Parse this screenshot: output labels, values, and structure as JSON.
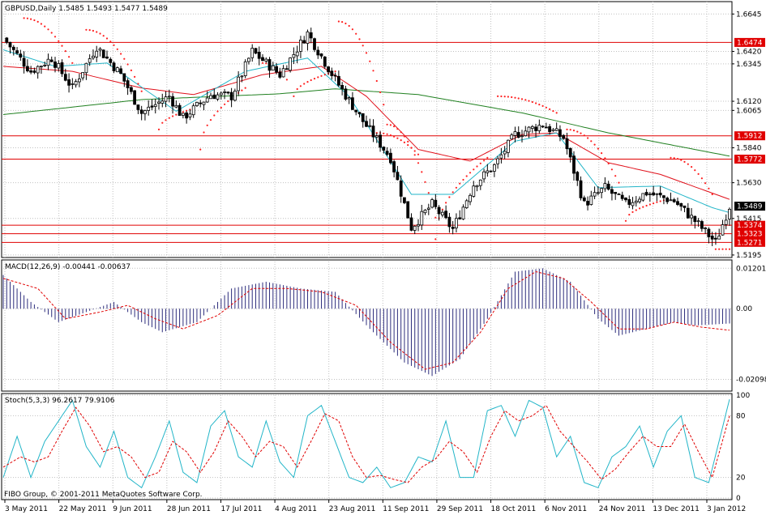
{
  "colors": {
    "background": "#ffffff",
    "frame": "#000000",
    "grid": "#c0c0c0",
    "candle": "#000000",
    "sma_slow": "#208020",
    "ema_mid": "#e0101a",
    "ema_fast": "#22b5c8",
    "sar": "#ff2020",
    "hline": "#e00000",
    "label_red_bg": "#e00000",
    "label_black_bg": "#000000",
    "macd_hist": "#2c2c7c",
    "macd_signal": "#e00000",
    "stoch_main": "#22b5c8",
    "stoch_signal": "#e00000"
  },
  "header": {
    "symbol_line": "GBPUSD,Daily  1.5485 1.5493 1.5477 1.5489",
    "macd_line": "MACD(12,26,9) -0.00441 -0.00637",
    "stoch_line": "Stoch(5,3,3) 96.2617 79.9106",
    "copyright": "FIBO Group, © 2001-2011 MetaQuotes Software Corp."
  },
  "chart_data": [
    {
      "type": "candlestick",
      "title": "GBPUSD,Daily  1.5485 1.5493 1.5477 1.5489",
      "ylim": [
        1.518,
        1.67
      ],
      "y_ticks": [
        "1.6645",
        "1.6420",
        "1.6345",
        "1.6120",
        "1.6065",
        "1.5840",
        "1.5630",
        "1.5415",
        "1.5195"
      ],
      "y_tick_values": [
        1.6645,
        1.642,
        1.6345,
        1.612,
        1.6065,
        1.584,
        1.563,
        1.5415,
        1.5195
      ],
      "x_ticks": [
        "3 May 2011",
        "22 May 2011",
        "9 Jun 2011",
        "28 Jun 2011",
        "17 Jul 2011",
        "4 Aug 2011",
        "23 Aug 2011",
        "11 Sep 2011",
        "29 Sep 2011",
        "18 Oct 2011",
        "6 Nov 2011",
        "24 Nov 2011",
        "13 Dec 2011",
        "3 Jan 2012"
      ],
      "bars_count": 180,
      "close_path": [
        [
          0,
          1.65
        ],
        [
          8,
          1.63
        ],
        [
          14,
          1.638
        ],
        [
          20,
          1.62
        ],
        [
          27,
          1.645
        ],
        [
          34,
          1.628
        ],
        [
          40,
          1.605
        ],
        [
          48,
          1.615
        ],
        [
          52,
          1.602
        ],
        [
          60,
          1.616
        ],
        [
          66,
          1.615
        ],
        [
          72,
          1.642
        ],
        [
          80,
          1.628
        ],
        [
          88,
          1.653
        ],
        [
          96,
          1.625
        ],
        [
          104,
          1.6
        ],
        [
          112,
          1.578
        ],
        [
          118,
          1.536
        ],
        [
          124,
          1.55
        ],
        [
          130,
          1.535
        ],
        [
          136,
          1.562
        ],
        [
          142,
          1.573
        ],
        [
          148,
          1.592
        ],
        [
          156,
          1.598
        ],
        [
          162,
          1.59
        ],
        [
          168,
          1.55
        ],
        [
          174,
          1.56
        ],
        [
          180,
          1.55
        ],
        [
          186,
          1.557
        ],
        [
          194,
          1.552
        ],
        [
          200,
          1.54
        ],
        [
          206,
          1.527
        ],
        [
          210,
          1.5489
        ]
      ],
      "sma_slow": [
        [
          0,
          1.604
        ],
        [
          40,
          1.613
        ],
        [
          80,
          1.6165
        ],
        [
          96,
          1.6195
        ],
        [
          120,
          1.616
        ],
        [
          150,
          1.605
        ],
        [
          175,
          1.593
        ],
        [
          210,
          1.579
        ]
      ],
      "ema_mid": [
        [
          0,
          1.633
        ],
        [
          20,
          1.63
        ],
        [
          40,
          1.62
        ],
        [
          55,
          1.616
        ],
        [
          75,
          1.628
        ],
        [
          92,
          1.633
        ],
        [
          105,
          1.615
        ],
        [
          120,
          1.583
        ],
        [
          135,
          1.576
        ],
        [
          150,
          1.592
        ],
        [
          160,
          1.593
        ],
        [
          175,
          1.575
        ],
        [
          190,
          1.568
        ],
        [
          210,
          1.553
        ]
      ],
      "ema_fast": [
        [
          0,
          1.643
        ],
        [
          15,
          1.633
        ],
        [
          30,
          1.635
        ],
        [
          50,
          1.606
        ],
        [
          70,
          1.63
        ],
        [
          88,
          1.638
        ],
        [
          100,
          1.615
        ],
        [
          118,
          1.556
        ],
        [
          130,
          1.556
        ],
        [
          148,
          1.588
        ],
        [
          160,
          1.593
        ],
        [
          172,
          1.56
        ],
        [
          190,
          1.561
        ],
        [
          205,
          1.548
        ],
        [
          210,
          1.545
        ]
      ],
      "sar_segments": [
        {
          "from": 6,
          "to": 20,
          "start": 1.662,
          "end": 1.635
        },
        {
          "from": 24,
          "to": 40,
          "start": 1.655,
          "end": 1.618
        },
        {
          "from": 45,
          "to": 54,
          "start": 1.595,
          "end": 1.607
        },
        {
          "from": 57,
          "to": 70,
          "start": 1.583,
          "end": 1.62
        },
        {
          "from": 75,
          "to": 82,
          "start": 1.635,
          "end": 1.625
        },
        {
          "from": 84,
          "to": 96,
          "start": 1.615,
          "end": 1.63
        },
        {
          "from": 97,
          "to": 110,
          "start": 1.66,
          "end": 1.61
        },
        {
          "from": 108,
          "to": 120,
          "start": 1.593,
          "end": 1.58
        },
        {
          "from": 111,
          "to": 125,
          "start": 1.598,
          "end": 1.542
        },
        {
          "from": 125,
          "to": 140,
          "start": 1.529,
          "end": 1.578
        },
        {
          "from": 143,
          "to": 160,
          "start": 1.615,
          "end": 1.605
        },
        {
          "from": 163,
          "to": 178,
          "start": 1.595,
          "end": 1.563
        },
        {
          "from": 180,
          "to": 192,
          "start": 1.54,
          "end": 1.553
        },
        {
          "from": 193,
          "to": 205,
          "start": 1.578,
          "end": 1.556
        },
        {
          "from": 206,
          "to": 210,
          "start": 1.523,
          "end": 1.523
        }
      ],
      "levels": [
        {
          "value": 1.6474,
          "label": "1.6474",
          "color": "red"
        },
        {
          "value": 1.5912,
          "label": "1.5912",
          "color": "red"
        },
        {
          "value": 1.5772,
          "label": "1.5772",
          "color": "red"
        },
        {
          "value": 1.5374,
          "label": "1.5374",
          "color": "red"
        },
        {
          "value": 1.5323,
          "label": "1.5323",
          "color": "red"
        },
        {
          "value": 1.5271,
          "label": "1.5271",
          "color": "red"
        }
      ],
      "current_price": {
        "value": 1.5489,
        "label": "1.5489"
      }
    },
    {
      "type": "bar",
      "title": "MACD(12,26,9) -0.00441 -0.00637",
      "ylim": [
        -0.024,
        0.014
      ],
      "y_ticks": [
        "0.01201",
        "0.00",
        "-0.02098"
      ],
      "y_tick_values": [
        0.01201,
        0.0,
        -0.02098
      ],
      "macd_path": [
        [
          0,
          0.01
        ],
        [
          8,
          0.002
        ],
        [
          16,
          -0.004
        ],
        [
          24,
          -0.001
        ],
        [
          32,
          0.002
        ],
        [
          40,
          -0.004
        ],
        [
          46,
          -0.007
        ],
        [
          56,
          -0.004
        ],
        [
          66,
          0.006
        ],
        [
          76,
          0.008
        ],
        [
          86,
          0.006
        ],
        [
          96,
          0.005
        ],
        [
          106,
          -0.006
        ],
        [
          116,
          -0.016
        ],
        [
          124,
          -0.02
        ],
        [
          132,
          -0.015
        ],
        [
          140,
          -0.003
        ],
        [
          148,
          0.011
        ],
        [
          156,
          0.012
        ],
        [
          164,
          0.008
        ],
        [
          172,
          -0.003
        ],
        [
          178,
          -0.008
        ],
        [
          186,
          -0.006
        ],
        [
          194,
          -0.004
        ],
        [
          200,
          -0.005
        ],
        [
          210,
          -0.0044
        ]
      ],
      "signal_path": [
        [
          0,
          0.009
        ],
        [
          10,
          0.006
        ],
        [
          18,
          -0.003
        ],
        [
          28,
          -0.001
        ],
        [
          36,
          0.001
        ],
        [
          44,
          -0.003
        ],
        [
          52,
          -0.006
        ],
        [
          62,
          -0.002
        ],
        [
          72,
          0.006
        ],
        [
          82,
          0.006
        ],
        [
          92,
          0.005
        ],
        [
          102,
          0.001
        ],
        [
          112,
          -0.01
        ],
        [
          122,
          -0.018
        ],
        [
          130,
          -0.016
        ],
        [
          138,
          -0.007
        ],
        [
          146,
          0.006
        ],
        [
          154,
          0.011
        ],
        [
          162,
          0.009
        ],
        [
          170,
          0.002
        ],
        [
          178,
          -0.006
        ],
        [
          186,
          -0.006
        ],
        [
          194,
          -0.004
        ],
        [
          202,
          -0.0055
        ],
        [
          210,
          -0.0064
        ]
      ]
    },
    {
      "type": "line",
      "title": "Stoch(5,3,3) 96.2617 79.9106",
      "ylim": [
        0,
        100
      ],
      "y_ticks": [
        "100",
        "80",
        "20",
        "0"
      ],
      "y_tick_values": [
        100,
        80,
        20,
        0
      ],
      "main_path": [
        [
          0,
          20
        ],
        [
          4,
          60
        ],
        [
          8,
          20
        ],
        [
          12,
          55
        ],
        [
          16,
          75
        ],
        [
          18,
          85
        ],
        [
          20,
          95
        ],
        [
          24,
          50
        ],
        [
          28,
          30
        ],
        [
          32,
          65
        ],
        [
          36,
          20
        ],
        [
          40,
          10
        ],
        [
          44,
          40
        ],
        [
          48,
          75
        ],
        [
          52,
          25
        ],
        [
          56,
          15
        ],
        [
          60,
          70
        ],
        [
          64,
          85
        ],
        [
          68,
          40
        ],
        [
          72,
          30
        ],
        [
          76,
          75
        ],
        [
          80,
          35
        ],
        [
          84,
          20
        ],
        [
          88,
          80
        ],
        [
          92,
          90
        ],
        [
          96,
          55
        ],
        [
          100,
          20
        ],
        [
          104,
          15
        ],
        [
          108,
          30
        ],
        [
          112,
          10
        ],
        [
          116,
          15
        ],
        [
          120,
          40
        ],
        [
          124,
          35
        ],
        [
          128,
          75
        ],
        [
          132,
          20
        ],
        [
          136,
          20
        ],
        [
          140,
          85
        ],
        [
          144,
          90
        ],
        [
          148,
          60
        ],
        [
          152,
          95
        ],
        [
          156,
          88
        ],
        [
          160,
          40
        ],
        [
          164,
          60
        ],
        [
          168,
          15
        ],
        [
          172,
          10
        ],
        [
          176,
          40
        ],
        [
          180,
          50
        ],
        [
          184,
          70
        ],
        [
          188,
          30
        ],
        [
          192,
          65
        ],
        [
          196,
          80
        ],
        [
          200,
          20
        ],
        [
          204,
          15
        ],
        [
          210,
          96
        ]
      ],
      "signal_path": [
        [
          0,
          30
        ],
        [
          5,
          40
        ],
        [
          9,
          35
        ],
        [
          13,
          40
        ],
        [
          17,
          65
        ],
        [
          21,
          88
        ],
        [
          25,
          70
        ],
        [
          29,
          45
        ],
        [
          33,
          50
        ],
        [
          37,
          40
        ],
        [
          41,
          20
        ],
        [
          45,
          25
        ],
        [
          49,
          55
        ],
        [
          53,
          45
        ],
        [
          57,
          25
        ],
        [
          61,
          45
        ],
        [
          65,
          75
        ],
        [
          69,
          60
        ],
        [
          73,
          40
        ],
        [
          77,
          55
        ],
        [
          81,
          50
        ],
        [
          85,
          30
        ],
        [
          89,
          55
        ],
        [
          93,
          82
        ],
        [
          97,
          75
        ],
        [
          101,
          40
        ],
        [
          105,
          20
        ],
        [
          109,
          22
        ],
        [
          113,
          18
        ],
        [
          117,
          15
        ],
        [
          121,
          30
        ],
        [
          125,
          38
        ],
        [
          129,
          55
        ],
        [
          133,
          45
        ],
        [
          137,
          25
        ],
        [
          141,
          60
        ],
        [
          145,
          85
        ],
        [
          149,
          75
        ],
        [
          153,
          80
        ],
        [
          157,
          90
        ],
        [
          161,
          65
        ],
        [
          165,
          50
        ],
        [
          169,
          35
        ],
        [
          173,
          18
        ],
        [
          177,
          28
        ],
        [
          181,
          45
        ],
        [
          185,
          60
        ],
        [
          189,
          50
        ],
        [
          193,
          50
        ],
        [
          197,
          72
        ],
        [
          201,
          45
        ],
        [
          205,
          20
        ],
        [
          210,
          80
        ]
      ]
    }
  ]
}
